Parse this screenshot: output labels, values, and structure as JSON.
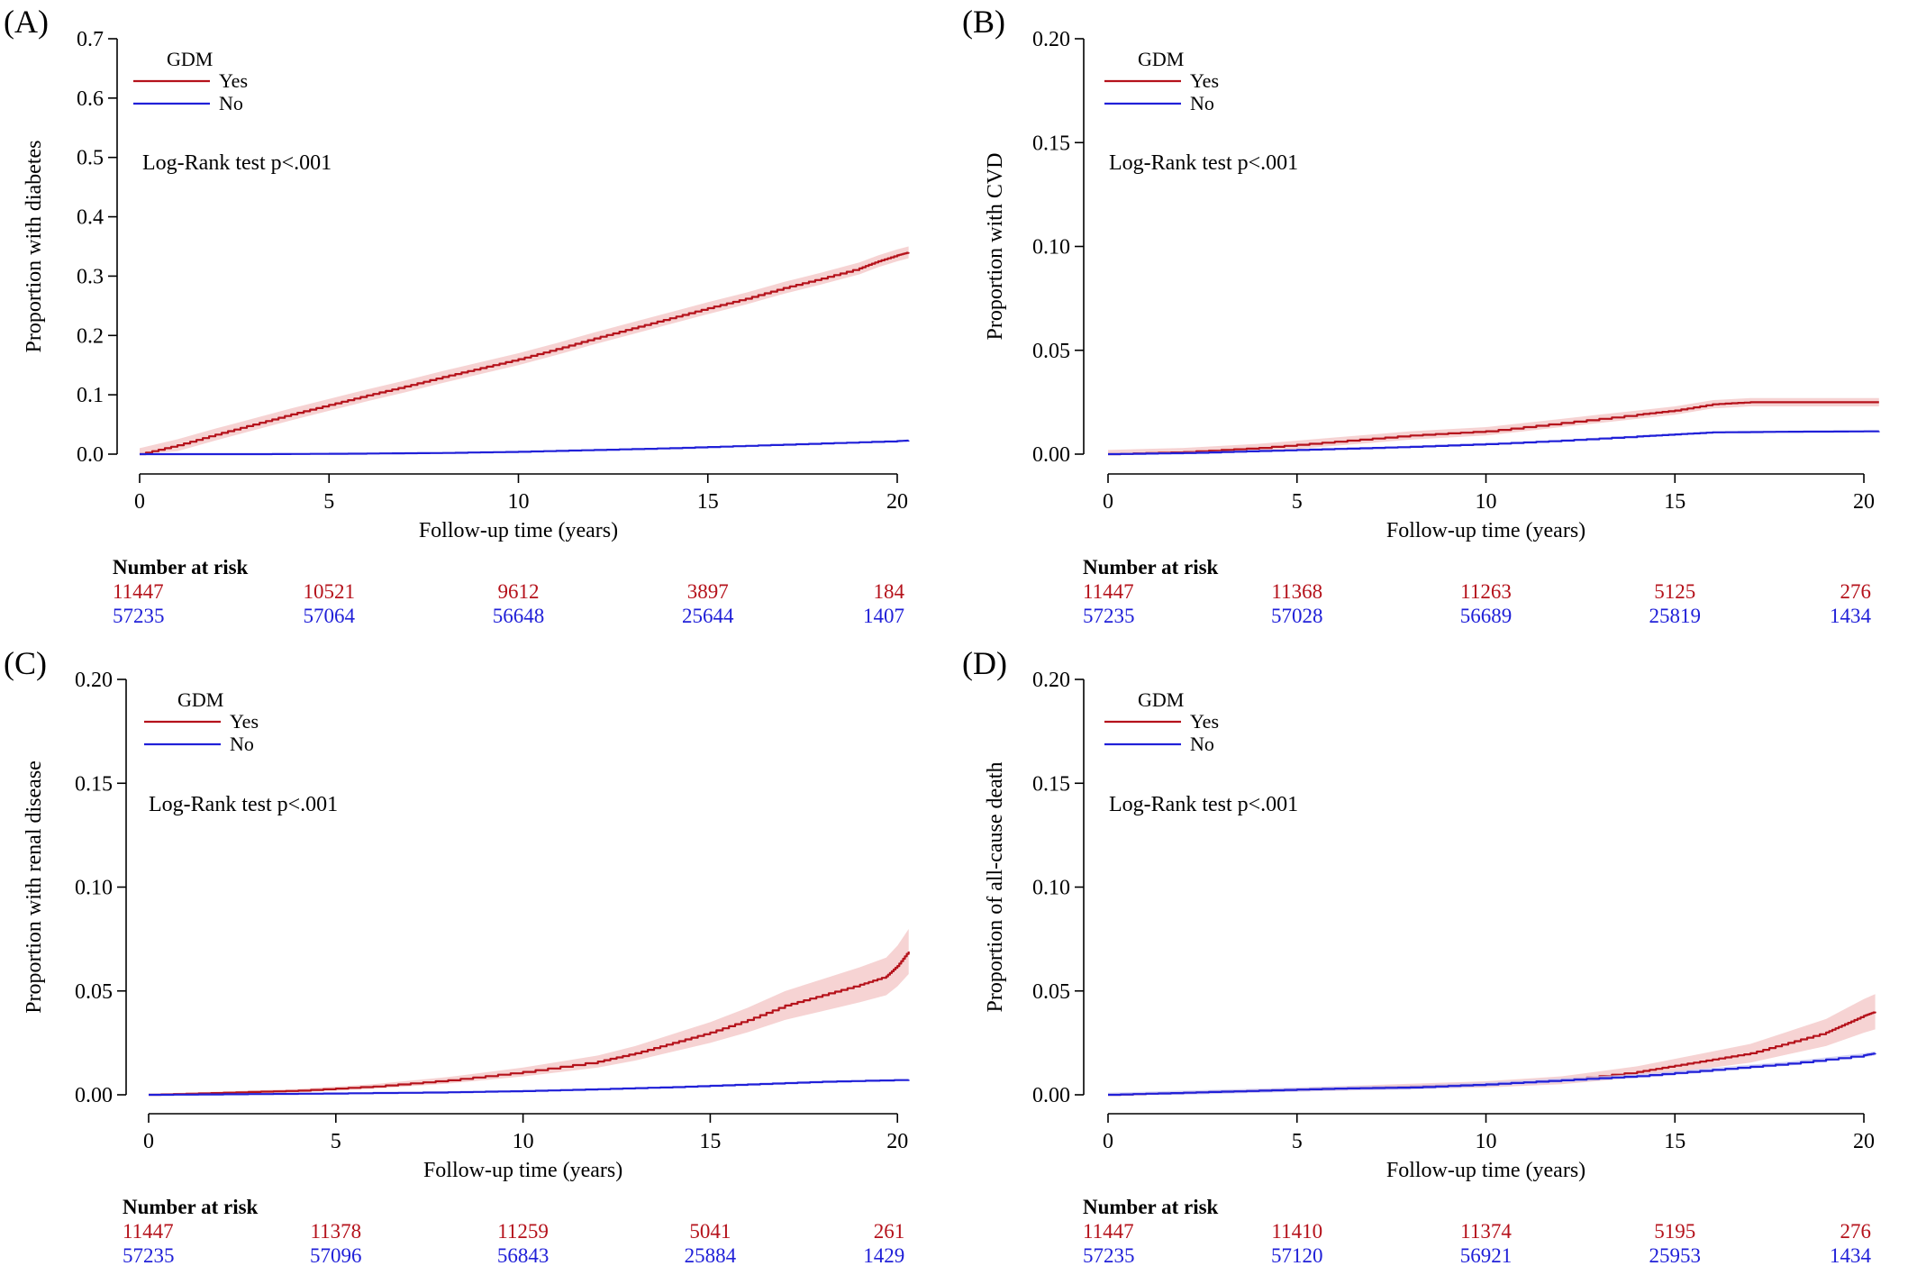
{
  "colors": {
    "yes": "#b5121b",
    "no": "#2020d8",
    "yes_band": "#f3c4c4",
    "no_band": "#c9c9f3"
  },
  "risk_table_title": "Number at risk",
  "chart_data": [
    {
      "type": "line",
      "panel": "(A)",
      "title": "",
      "xlabel": "Follow-up time (years)",
      "ylabel": "Proportion with diabetes",
      "xlim": [
        0,
        20.5
      ],
      "ylim": [
        0,
        0.7
      ],
      "xticks": [
        0,
        5,
        10,
        15,
        20
      ],
      "xtick_labels": [
        "0",
        "5",
        "10",
        "15",
        "20"
      ],
      "yticks": [
        0,
        0.1,
        0.2,
        0.3,
        0.4,
        0.5,
        0.6,
        0.7
      ],
      "ytick_labels": [
        "0.0",
        "0.1",
        "0.2",
        "0.3",
        "0.4",
        "0.5",
        "0.6",
        "0.7"
      ],
      "legend": {
        "title": "GDM",
        "entries": [
          "Yes",
          "No"
        ],
        "position": "top-left"
      },
      "annotation": "Log-Rank test p<.001",
      "series": [
        {
          "name": "Yes",
          "x": [
            0,
            1,
            2,
            3,
            4,
            5,
            6,
            7,
            8,
            9,
            10,
            11,
            12,
            13,
            14,
            15,
            16,
            17,
            18,
            19,
            19.5,
            20,
            20.3
          ],
          "values": [
            0,
            0.015,
            0.033,
            0.05,
            0.067,
            0.083,
            0.099,
            0.114,
            0.13,
            0.145,
            0.16,
            0.177,
            0.195,
            0.212,
            0.229,
            0.246,
            0.262,
            0.28,
            0.296,
            0.313,
            0.325,
            0.335,
            0.34
          ],
          "band": 0.01
        },
        {
          "name": "No",
          "x": [
            0,
            3,
            6,
            8,
            10,
            12,
            14,
            16,
            18,
            20,
            20.3
          ],
          "values": [
            0,
            0,
            0.001,
            0.002,
            0.004,
            0.007,
            0.01,
            0.014,
            0.018,
            0.022,
            0.023
          ],
          "band": 0.001
        }
      ],
      "risk_table": {
        "times": [
          0,
          5,
          10,
          15,
          20
        ],
        "Yes": [
          "11447",
          "10521",
          "9612",
          "3897",
          "184"
        ],
        "No": [
          "57235",
          "57064",
          "56648",
          "25644",
          "1407"
        ]
      }
    },
    {
      "type": "line",
      "panel": "(B)",
      "title": "",
      "xlabel": "Follow-up time (years)",
      "ylabel": "Proportion with CVD",
      "xlim": [
        0,
        20.5
      ],
      "ylim": [
        0,
        0.2
      ],
      "xticks": [
        0,
        5,
        10,
        15,
        20
      ],
      "xtick_labels": [
        "0",
        "5",
        "10",
        "15",
        "20"
      ],
      "yticks": [
        0,
        0.05,
        0.1,
        0.15,
        0.2
      ],
      "ytick_labels": [
        "0.00",
        "0.05",
        "0.10",
        "0.15",
        "0.20"
      ],
      "legend": {
        "title": "GDM",
        "entries": [
          "Yes",
          "No"
        ],
        "position": "top-left"
      },
      "annotation": "Log-Rank test p<.001",
      "series": [
        {
          "name": "Yes",
          "x": [
            0,
            2,
            4,
            6,
            8,
            10,
            12,
            14,
            15,
            16,
            17,
            18,
            20.4
          ],
          "values": [
            0,
            0.001,
            0.003,
            0.006,
            0.009,
            0.011,
            0.015,
            0.019,
            0.021,
            0.024,
            0.025,
            0.025,
            0.025
          ],
          "band": 0.002
        },
        {
          "name": "No",
          "x": [
            0,
            2,
            4,
            6,
            8,
            10,
            12,
            14,
            15,
            16,
            18,
            20.4
          ],
          "values": [
            0,
            0.0005,
            0.0015,
            0.0025,
            0.0035,
            0.0048,
            0.0065,
            0.0085,
            0.0095,
            0.0105,
            0.0108,
            0.011
          ],
          "band": 0.0005
        }
      ],
      "risk_table": {
        "times": [
          0,
          5,
          10,
          15,
          20
        ],
        "Yes": [
          "11447",
          "11368",
          "11263",
          "5125",
          "276"
        ],
        "No": [
          "57235",
          "57028",
          "56689",
          "25819",
          "1434"
        ]
      }
    },
    {
      "type": "line",
      "panel": "(C)",
      "title": "",
      "xlabel": "Follow-up time (years)",
      "ylabel": "Proportion with renal disease",
      "xlim": [
        0,
        20.5
      ],
      "ylim": [
        0,
        0.2
      ],
      "xticks": [
        0,
        5,
        10,
        15,
        20
      ],
      "xtick_labels": [
        "0",
        "5",
        "10",
        "15",
        "20"
      ],
      "yticks": [
        0,
        0.05,
        0.1,
        0.15,
        0.2
      ],
      "ytick_labels": [
        "0.00",
        "0.05",
        "0.10",
        "0.15",
        "0.20"
      ],
      "legend": {
        "title": "GDM",
        "entries": [
          "Yes",
          "No"
        ],
        "position": "top-left"
      },
      "annotation": "Log-Rank test p<.001",
      "series": [
        {
          "name": "Yes",
          "x": [
            0,
            2,
            4,
            6,
            8,
            10,
            12,
            13,
            14,
            15,
            16,
            17,
            18,
            19,
            19.7,
            20,
            20.3
          ],
          "values": [
            0,
            0.001,
            0.002,
            0.004,
            0.007,
            0.011,
            0.016,
            0.02,
            0.025,
            0.03,
            0.036,
            0.043,
            0.048,
            0.053,
            0.057,
            0.062,
            0.069
          ],
          "band_scale": 0.15
        },
        {
          "name": "No",
          "x": [
            0,
            4,
            8,
            10,
            12,
            14,
            16,
            18,
            20.3
          ],
          "values": [
            0,
            0.0005,
            0.0012,
            0.0018,
            0.0027,
            0.0037,
            0.005,
            0.0063,
            0.0072
          ],
          "band": 0.0004
        }
      ],
      "risk_table": {
        "times": [
          0,
          5,
          10,
          15,
          20
        ],
        "Yes": [
          "11447",
          "11378",
          "11259",
          "5041",
          "261"
        ],
        "No": [
          "57235",
          "57096",
          "56843",
          "25884",
          "1429"
        ]
      }
    },
    {
      "type": "line",
      "panel": "(D)",
      "title": "",
      "xlabel": "Follow-up time (years)",
      "ylabel": "Proportion of all-cause death",
      "xlim": [
        0,
        20.5
      ],
      "ylim": [
        0,
        0.2
      ],
      "xticks": [
        0,
        5,
        10,
        15,
        20
      ],
      "xtick_labels": [
        "0",
        "5",
        "10",
        "15",
        "20"
      ],
      "yticks": [
        0,
        0.05,
        0.1,
        0.15,
        0.2
      ],
      "ytick_labels": [
        "0.00",
        "0.05",
        "0.10",
        "0.15",
        "0.20"
      ],
      "legend": {
        "title": "GDM",
        "entries": [
          "Yes",
          "No"
        ],
        "position": "top-left"
      },
      "annotation": "Log-Rank test p<.001",
      "series": [
        {
          "name": "Yes",
          "x": [
            0,
            2,
            4,
            6,
            8,
            10,
            12,
            14,
            15,
            16,
            17,
            18,
            19,
            19.5,
            20,
            20.3
          ],
          "values": [
            0,
            0.001,
            0.002,
            0.003,
            0.004,
            0.005,
            0.007,
            0.011,
            0.014,
            0.017,
            0.02,
            0.025,
            0.03,
            0.034,
            0.038,
            0.04
          ],
          "band_scale": 0.2
        },
        {
          "name": "No",
          "x": [
            0,
            2,
            4,
            6,
            8,
            10,
            12,
            14,
            16,
            18,
            20,
            20.3
          ],
          "values": [
            0,
            0.001,
            0.002,
            0.003,
            0.0035,
            0.005,
            0.007,
            0.009,
            0.012,
            0.015,
            0.019,
            0.02
          ],
          "band": 0.001
        }
      ],
      "risk_table": {
        "times": [
          0,
          5,
          10,
          15,
          20
        ],
        "Yes": [
          "11447",
          "11410",
          "11374",
          "5195",
          "276"
        ],
        "No": [
          "57235",
          "57120",
          "56921",
          "25953",
          "1434"
        ]
      }
    }
  ]
}
